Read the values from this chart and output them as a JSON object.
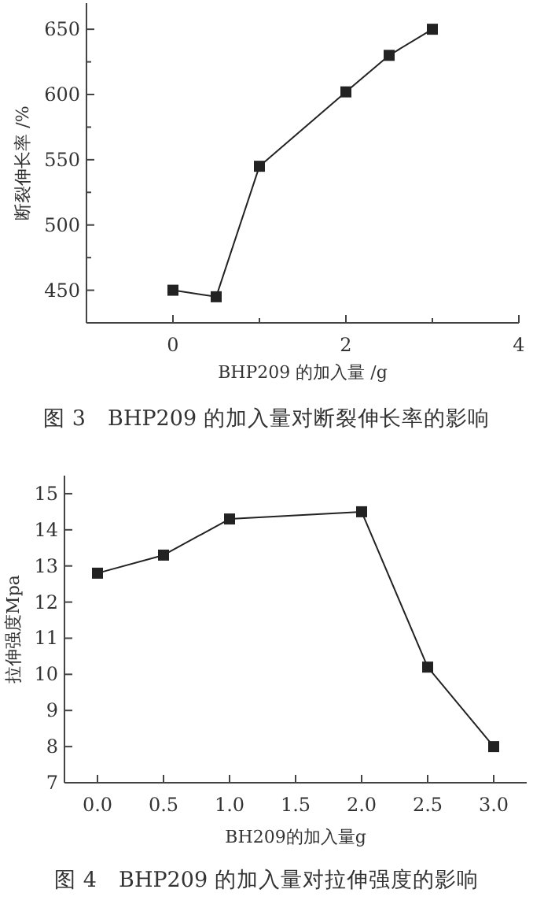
{
  "chart_data": [
    {
      "type": "line",
      "title": "图 3　BHP209 的加入量对断裂伸长率的影响",
      "xlabel": "BHP209 的加入量 /g",
      "ylabel": "断裂伸长率 /%",
      "x": [
        0,
        0.5,
        1,
        2,
        2.5,
        3
      ],
      "series": [
        {
          "color": "#222222",
          "values": [
            450,
            445,
            545,
            602,
            630,
            650
          ]
        }
      ],
      "xlim": [
        -1,
        4
      ],
      "ylim": [
        425,
        670
      ],
      "xticks": [
        0,
        {
          "value": 1,
          "label": null
        },
        2,
        {
          "value": 3,
          "label": null
        },
        4
      ],
      "yticks": [
        450,
        {
          "value": 475,
          "label": null
        },
        500,
        {
          "value": 525,
          "label": null
        },
        550,
        {
          "value": 575,
          "label": null
        },
        600,
        {
          "value": 625,
          "label": null
        },
        650
      ],
      "marker": "square",
      "line_style": "solid",
      "grid": false
    },
    {
      "type": "line",
      "title": "图 4　BHP209 的加入量对拉伸强度的影响",
      "xlabel": "BH209的加入量g",
      "ylabel": "拉伸强度Mpa",
      "x": [
        0,
        0.5,
        1,
        2,
        2.5,
        3
      ],
      "series": [
        {
          "color": "#222222",
          "values": [
            12.8,
            13.3,
            14.3,
            14.5,
            10.2,
            8.0
          ]
        }
      ],
      "xlim": [
        -0.25,
        3.25
      ],
      "ylim": [
        7,
        15.5
      ],
      "xticks": [
        {
          "value": 0,
          "label": "0.0"
        },
        {
          "value": 0.5,
          "label": "0.5"
        },
        {
          "value": 1,
          "label": "1.0"
        },
        {
          "value": 1.5,
          "label": "1.5"
        },
        {
          "value": 2,
          "label": "2.0"
        },
        {
          "value": 2.5,
          "label": "2.5"
        },
        {
          "value": 3,
          "label": "3.0"
        }
      ],
      "yticks": [
        7,
        8,
        9,
        10,
        11,
        12,
        13,
        14,
        15
      ],
      "marker": "square",
      "line_style": "solid",
      "grid": false
    }
  ]
}
